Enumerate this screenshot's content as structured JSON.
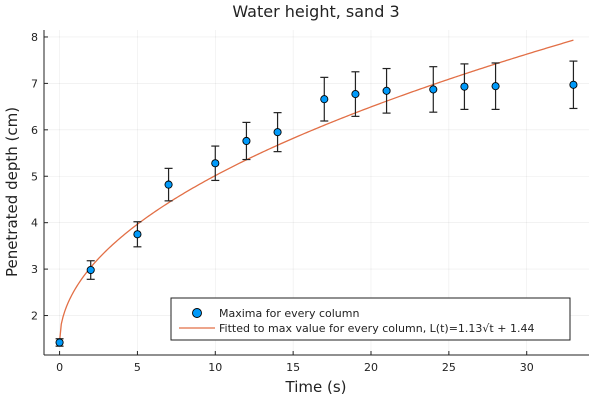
{
  "chart_data": {
    "type": "scatter",
    "title": "Water height, sand 3",
    "xlabel": "Time (s)",
    "ylabel": "Penetrated depth (cm)",
    "xlim": [
      -1,
      34
    ],
    "ylim": [
      1.15,
      8.15
    ],
    "x_ticks": [
      0,
      5,
      10,
      15,
      20,
      25,
      30
    ],
    "y_ticks": [
      2,
      3,
      4,
      5,
      6,
      7,
      8
    ],
    "grid": true,
    "legend_position": "bottom-right",
    "series": [
      {
        "name": "Maxima for every column",
        "kind": "scatter_errorbar",
        "color": "#009AFA",
        "x": [
          0,
          2,
          5,
          7,
          10,
          12,
          14,
          17,
          19,
          21,
          24,
          26,
          28,
          33
        ],
        "y": [
          1.42,
          2.98,
          3.75,
          4.82,
          5.28,
          5.76,
          5.95,
          6.66,
          6.77,
          6.84,
          6.87,
          6.93,
          6.94,
          6.97
        ],
        "err": [
          0.08,
          0.2,
          0.27,
          0.35,
          0.37,
          0.4,
          0.42,
          0.47,
          0.48,
          0.48,
          0.49,
          0.49,
          0.5,
          0.51
        ]
      },
      {
        "name": "Fitted to max value for every column, L(t)=1.13√t + 1.44",
        "kind": "fit_line",
        "color": "#E26F46",
        "a": 1.13,
        "b": 1.44,
        "x_range": [
          0,
          33
        ]
      }
    ]
  }
}
